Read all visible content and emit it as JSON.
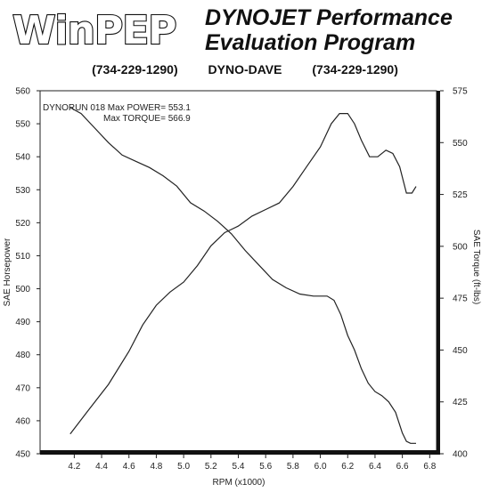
{
  "header": {
    "logo_text": "WinPEP",
    "title_line1": "DYNOJET Performance",
    "title_line2": "Evaluation Program",
    "phone_left": "(734-229-1290)",
    "center_label": "DYNO-DAVE",
    "phone_right": "(734-229-1290)"
  },
  "chart_data": {
    "type": "line",
    "annotation_line1": "DYNORUN 018  Max POWER= 553.1",
    "annotation_line2": "Max TORQUE= 566.9",
    "xlabel": "RPM (x1000)",
    "ylabel_left": "SAE Horsepower",
    "ylabel_right": "SAE Torque (ft-lbs)",
    "xlim": [
      3.95,
      6.85
    ],
    "ylim_left": [
      450,
      560
    ],
    "ylim_right": [
      400,
      575
    ],
    "x_ticks": [
      "4.2",
      "4.4",
      "4.6",
      "4.8",
      "5.0",
      "5.2",
      "5.4",
      "5.6",
      "5.8",
      "6.0",
      "6.2",
      "6.4",
      "6.6",
      "6.8"
    ],
    "y_ticks_left": [
      "560",
      "550",
      "540",
      "530",
      "520",
      "510",
      "500",
      "490",
      "480",
      "470",
      "460",
      "450"
    ],
    "y_ticks_right": [
      "575",
      "550",
      "525",
      "500",
      "475",
      "450",
      "425",
      "400"
    ],
    "series": [
      {
        "axis": "left",
        "x": [
          4.17,
          4.3,
          4.45,
          4.6,
          4.7,
          4.8,
          4.9,
          5.0,
          5.1,
          5.2,
          5.3,
          5.4,
          5.5,
          5.6,
          5.7,
          5.8,
          5.9,
          6.0,
          6.08,
          6.14,
          6.2,
          6.25,
          6.3,
          6.36,
          6.42,
          6.48,
          6.53,
          6.58,
          6.63,
          6.67,
          6.7
        ],
        "values": [
          456,
          463,
          471,
          481,
          489,
          495,
          499,
          502,
          507,
          513,
          517,
          519,
          522,
          524,
          526,
          531,
          537,
          543,
          550,
          553.1,
          553.1,
          550,
          545,
          540,
          540,
          542,
          541,
          537,
          529,
          529,
          531
        ]
      },
      {
        "axis": "right",
        "x": [
          4.17,
          4.25,
          4.35,
          4.45,
          4.55,
          4.65,
          4.75,
          4.85,
          4.95,
          5.05,
          5.15,
          5.25,
          5.35,
          5.45,
          5.55,
          5.65,
          5.75,
          5.85,
          5.95,
          6.0,
          6.05,
          6.1,
          6.15,
          6.2,
          6.25,
          6.3,
          6.35,
          6.4,
          6.45,
          6.5,
          6.55,
          6.6,
          6.63,
          6.66,
          6.7
        ],
        "values": [
          566.9,
          564,
          557,
          550,
          544,
          541,
          538,
          534,
          529,
          521,
          517,
          512,
          506,
          498,
          491,
          484,
          480,
          477,
          476,
          476,
          476,
          474,
          467,
          457,
          450,
          441,
          434,
          430,
          428,
          425,
          420,
          410,
          406,
          405,
          405
        ]
      }
    ]
  }
}
